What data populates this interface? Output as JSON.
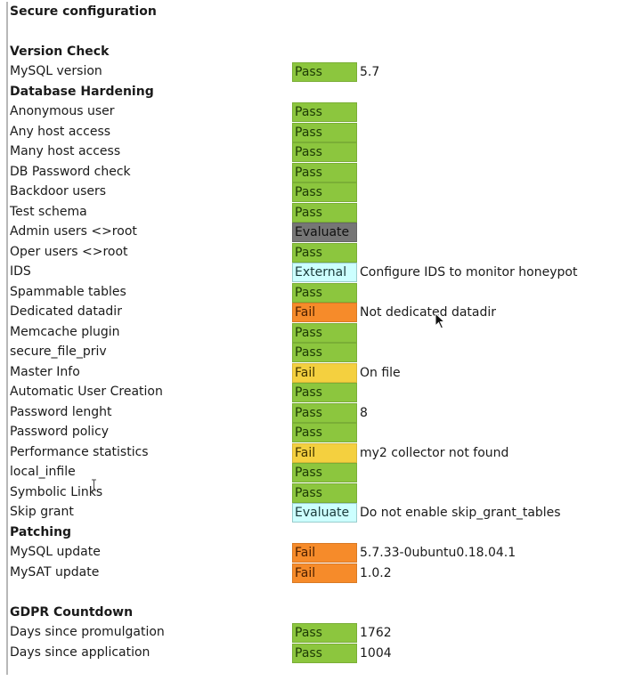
{
  "title": "Secure configuration",
  "colors": {
    "pass": "#8cc63e",
    "fail-orange": "#f68b2a",
    "fail-yellow": "#f4d03f",
    "evaluate-gray": "#767676",
    "external": "#ccffff"
  },
  "rows": [
    {
      "type": "title",
      "label": "Secure configuration"
    },
    {
      "type": "blank"
    },
    {
      "type": "heading",
      "label": "Version Check"
    },
    {
      "type": "item",
      "label": "MySQL version",
      "status": "Pass",
      "style": "pass",
      "note": "5.7"
    },
    {
      "type": "heading",
      "label": "Database Hardening"
    },
    {
      "type": "item",
      "label": "Anonymous user",
      "status": "Pass",
      "style": "pass",
      "note": ""
    },
    {
      "type": "item",
      "label": "Any host access",
      "status": "Pass",
      "style": "pass",
      "note": ""
    },
    {
      "type": "item",
      "label": "Many host access",
      "status": "Pass",
      "style": "pass",
      "note": ""
    },
    {
      "type": "item",
      "label": "DB Password check",
      "status": "Pass",
      "style": "pass",
      "note": ""
    },
    {
      "type": "item",
      "label": "Backdoor users",
      "status": "Pass",
      "style": "pass",
      "note": ""
    },
    {
      "type": "item",
      "label": "Test schema",
      "status": "Pass",
      "style": "pass",
      "note": ""
    },
    {
      "type": "item",
      "label": "Admin users <>root",
      "status": "Evaluate",
      "style": "evaluate-gray",
      "note": ""
    },
    {
      "type": "item",
      "label": "Oper users <>root",
      "status": "Pass",
      "style": "pass",
      "note": ""
    },
    {
      "type": "item",
      "label": "IDS",
      "status": "External",
      "style": "external",
      "note": "Configure IDS to monitor honeypot"
    },
    {
      "type": "item",
      "label": "Spammable tables",
      "status": "Pass",
      "style": "pass",
      "note": ""
    },
    {
      "type": "item",
      "label": "Dedicated datadir",
      "status": "Fail",
      "style": "fail-orange",
      "note": "Not dedicated datadir"
    },
    {
      "type": "item",
      "label": "Memcache plugin",
      "status": "Pass",
      "style": "pass",
      "note": ""
    },
    {
      "type": "item",
      "label": "secure_file_priv",
      "status": "Pass",
      "style": "pass",
      "note": ""
    },
    {
      "type": "item",
      "label": "Master Info",
      "status": "Fail",
      "style": "fail-yellow",
      "note": "On file"
    },
    {
      "type": "item",
      "label": "Automatic User Creation",
      "status": "Pass",
      "style": "pass",
      "note": ""
    },
    {
      "type": "item",
      "label": "Password lenght",
      "status": "Pass",
      "style": "pass",
      "note": "8"
    },
    {
      "type": "item",
      "label": "Password policy",
      "status": "Pass",
      "style": "pass",
      "note": ""
    },
    {
      "type": "item",
      "label": "Performance statistics",
      "status": "Fail",
      "style": "fail-yellow",
      "note": "my2 collector not found"
    },
    {
      "type": "item",
      "label": "local_infile",
      "status": "Pass",
      "style": "pass",
      "note": ""
    },
    {
      "type": "item",
      "label": "Symbolic Links",
      "status": "Pass",
      "style": "pass",
      "note": ""
    },
    {
      "type": "item",
      "label": "Skip grant",
      "status": "Evaluate",
      "style": "external",
      "note": "Do not enable skip_grant_tables"
    },
    {
      "type": "heading",
      "label": "Patching"
    },
    {
      "type": "item",
      "label": "MySQL update",
      "status": "Fail",
      "style": "fail-orange",
      "note": "5.7.33-0ubuntu0.18.04.1"
    },
    {
      "type": "item",
      "label": "MySAT update",
      "status": "Fail",
      "style": "fail-orange",
      "note": "1.0.2"
    },
    {
      "type": "blank"
    },
    {
      "type": "heading",
      "label": "GDPR Countdown"
    },
    {
      "type": "item",
      "label": "Days since promulgation",
      "status": "Pass",
      "style": "pass",
      "note": "1762"
    },
    {
      "type": "item",
      "label": "Days since application",
      "status": "Pass",
      "style": "pass",
      "note": "1004"
    }
  ]
}
